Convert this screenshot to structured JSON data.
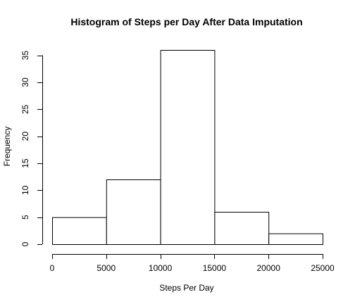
{
  "chart_data": {
    "type": "bar",
    "title": "Histogram of Steps per Day After Data Imputation",
    "xlabel": "Steps Per Day",
    "ylabel": "Frequency",
    "bins": [
      {
        "start": 0,
        "end": 5000,
        "count": 5
      },
      {
        "start": 5000,
        "end": 10000,
        "count": 12
      },
      {
        "start": 10000,
        "end": 15000,
        "count": 36
      },
      {
        "start": 15000,
        "end": 20000,
        "count": 6
      },
      {
        "start": 20000,
        "end": 25000,
        "count": 2
      }
    ],
    "xlim": [
      0,
      25000
    ],
    "ylim": [
      0,
      36
    ],
    "x_ticks": [
      0,
      5000,
      10000,
      15000,
      20000,
      25000
    ],
    "y_ticks": [
      0,
      5,
      10,
      15,
      20,
      25,
      30,
      35
    ],
    "grid": false,
    "legend": "none",
    "colors": {
      "bar_fill": "#ffffff",
      "bar_stroke": "#000000"
    }
  }
}
